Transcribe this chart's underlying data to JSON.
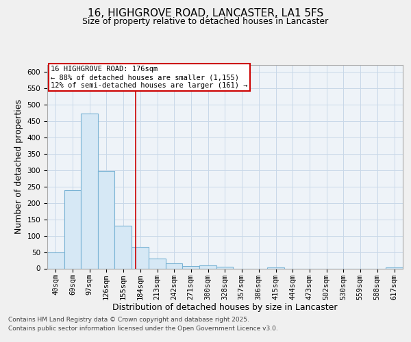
{
  "title": "16, HIGHGROVE ROAD, LANCASTER, LA1 5FS",
  "subtitle": "Size of property relative to detached houses in Lancaster",
  "xlabel": "Distribution of detached houses by size in Lancaster",
  "ylabel": "Number of detached properties",
  "footnote1": "Contains HM Land Registry data © Crown copyright and database right 2025.",
  "footnote2": "Contains public sector information licensed under the Open Government Licence v3.0.",
  "annotation_line1": "16 HIGHGROVE ROAD: 176sqm",
  "annotation_line2": "← 88% of detached houses are smaller (1,155)",
  "annotation_line3": "12% of semi-detached houses are larger (161) →",
  "property_size": 176,
  "bar_color": "#d6e8f5",
  "bar_edge_color": "#7ab3d4",
  "vline_color": "#cc0000",
  "annotation_box_color": "#cc0000",
  "categories": [
    "40sqm",
    "69sqm",
    "97sqm",
    "126sqm",
    "155sqm",
    "184sqm",
    "213sqm",
    "242sqm",
    "271sqm",
    "300sqm",
    "328sqm",
    "357sqm",
    "386sqm",
    "415sqm",
    "444sqm",
    "473sqm",
    "502sqm",
    "530sqm",
    "559sqm",
    "588sqm",
    "617sqm"
  ],
  "bin_left": [
    26,
    55,
    83,
    112,
    140,
    169,
    198,
    227,
    255,
    284,
    313,
    341,
    370,
    399,
    428,
    456,
    485,
    514,
    542,
    571,
    600
  ],
  "bin_right": [
    55,
    83,
    112,
    140,
    169,
    198,
    227,
    255,
    284,
    313,
    341,
    370,
    399,
    428,
    456,
    485,
    514,
    542,
    571,
    600,
    629
  ],
  "values": [
    48,
    238,
    473,
    297,
    130,
    65,
    30,
    15,
    8,
    9,
    6,
    0,
    0,
    4,
    0,
    0,
    0,
    0,
    0,
    0,
    4
  ],
  "ylim": [
    0,
    620
  ],
  "yticks": [
    0,
    50,
    100,
    150,
    200,
    250,
    300,
    350,
    400,
    450,
    500,
    550,
    600
  ],
  "background_color": "#f0f0f0",
  "plot_background": "#eef3f8",
  "grid_color": "#c8d8e8",
  "title_fontsize": 11,
  "subtitle_fontsize": 9,
  "axis_label_fontsize": 9,
  "tick_fontsize": 7.5,
  "annotation_fontsize": 7.5,
  "footnote_fontsize": 6.5
}
